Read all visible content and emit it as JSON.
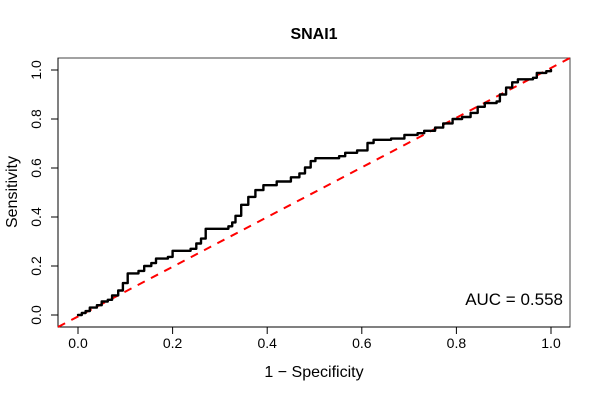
{
  "chart_data": {
    "type": "line",
    "title": "SNAI1",
    "xlabel": "1 − Specificity",
    "ylabel": "Sensitivity",
    "annotation": "AUC = 0.558",
    "auc_value": 0.558,
    "xlim": [
      0.0,
      1.0
    ],
    "ylim": [
      0.0,
      1.0
    ],
    "grid": false,
    "legend_position": "none",
    "x_ticks": [
      {
        "value": 0.0,
        "label": "0.0"
      },
      {
        "value": 0.2,
        "label": "0.2"
      },
      {
        "value": 0.4,
        "label": "0.4"
      },
      {
        "value": 0.6,
        "label": "0.6"
      },
      {
        "value": 0.8,
        "label": "0.8"
      },
      {
        "value": 1.0,
        "label": "1.0"
      }
    ],
    "y_ticks": [
      {
        "value": 0.0,
        "label": "0.0"
      },
      {
        "value": 0.2,
        "label": "0.2"
      },
      {
        "value": 0.4,
        "label": "0.4"
      },
      {
        "value": 0.6,
        "label": "0.6"
      },
      {
        "value": 0.8,
        "label": "0.8"
      },
      {
        "value": 1.0,
        "label": "1.0"
      }
    ],
    "series": [
      {
        "name": "ROC curve",
        "render": "step",
        "color": "#000000",
        "width": 2.4,
        "points": [
          [
            0.0,
            0.0
          ],
          [
            0.008,
            0.008
          ],
          [
            0.016,
            0.016
          ],
          [
            0.025,
            0.03
          ],
          [
            0.04,
            0.04
          ],
          [
            0.05,
            0.055
          ],
          [
            0.063,
            0.062
          ],
          [
            0.072,
            0.08
          ],
          [
            0.085,
            0.1
          ],
          [
            0.095,
            0.13
          ],
          [
            0.105,
            0.17
          ],
          [
            0.128,
            0.18
          ],
          [
            0.14,
            0.2
          ],
          [
            0.155,
            0.212
          ],
          [
            0.165,
            0.23
          ],
          [
            0.19,
            0.237
          ],
          [
            0.2,
            0.262
          ],
          [
            0.238,
            0.27
          ],
          [
            0.25,
            0.292
          ],
          [
            0.26,
            0.312
          ],
          [
            0.27,
            0.352
          ],
          [
            0.318,
            0.362
          ],
          [
            0.326,
            0.378
          ],
          [
            0.333,
            0.405
          ],
          [
            0.345,
            0.45
          ],
          [
            0.36,
            0.482
          ],
          [
            0.375,
            0.51
          ],
          [
            0.392,
            0.53
          ],
          [
            0.42,
            0.545
          ],
          [
            0.45,
            0.562
          ],
          [
            0.468,
            0.578
          ],
          [
            0.48,
            0.602
          ],
          [
            0.492,
            0.628
          ],
          [
            0.502,
            0.64
          ],
          [
            0.552,
            0.648
          ],
          [
            0.565,
            0.662
          ],
          [
            0.59,
            0.672
          ],
          [
            0.612,
            0.702
          ],
          [
            0.625,
            0.715
          ],
          [
            0.662,
            0.72
          ],
          [
            0.69,
            0.735
          ],
          [
            0.718,
            0.742
          ],
          [
            0.732,
            0.752
          ],
          [
            0.755,
            0.765
          ],
          [
            0.772,
            0.782
          ],
          [
            0.792,
            0.8
          ],
          [
            0.812,
            0.808
          ],
          [
            0.83,
            0.825
          ],
          [
            0.845,
            0.85
          ],
          [
            0.86,
            0.865
          ],
          [
            0.885,
            0.872
          ],
          [
            0.892,
            0.9
          ],
          [
            0.905,
            0.928
          ],
          [
            0.918,
            0.95
          ],
          [
            0.93,
            0.962
          ],
          [
            0.962,
            0.968
          ],
          [
            0.97,
            0.988
          ],
          [
            0.99,
            0.995
          ],
          [
            1.0,
            1.0
          ]
        ]
      },
      {
        "name": "Chance reference line",
        "render": "dashed-line",
        "color": "#ff0000",
        "width": 2,
        "points": [
          [
            0.0,
            0.0
          ],
          [
            1.0,
            1.0
          ]
        ]
      }
    ]
  },
  "colors": {
    "background": "#ffffff",
    "axis": "#000000",
    "box": "#444444",
    "curve": "#000000",
    "reference": "#ff0000"
  }
}
